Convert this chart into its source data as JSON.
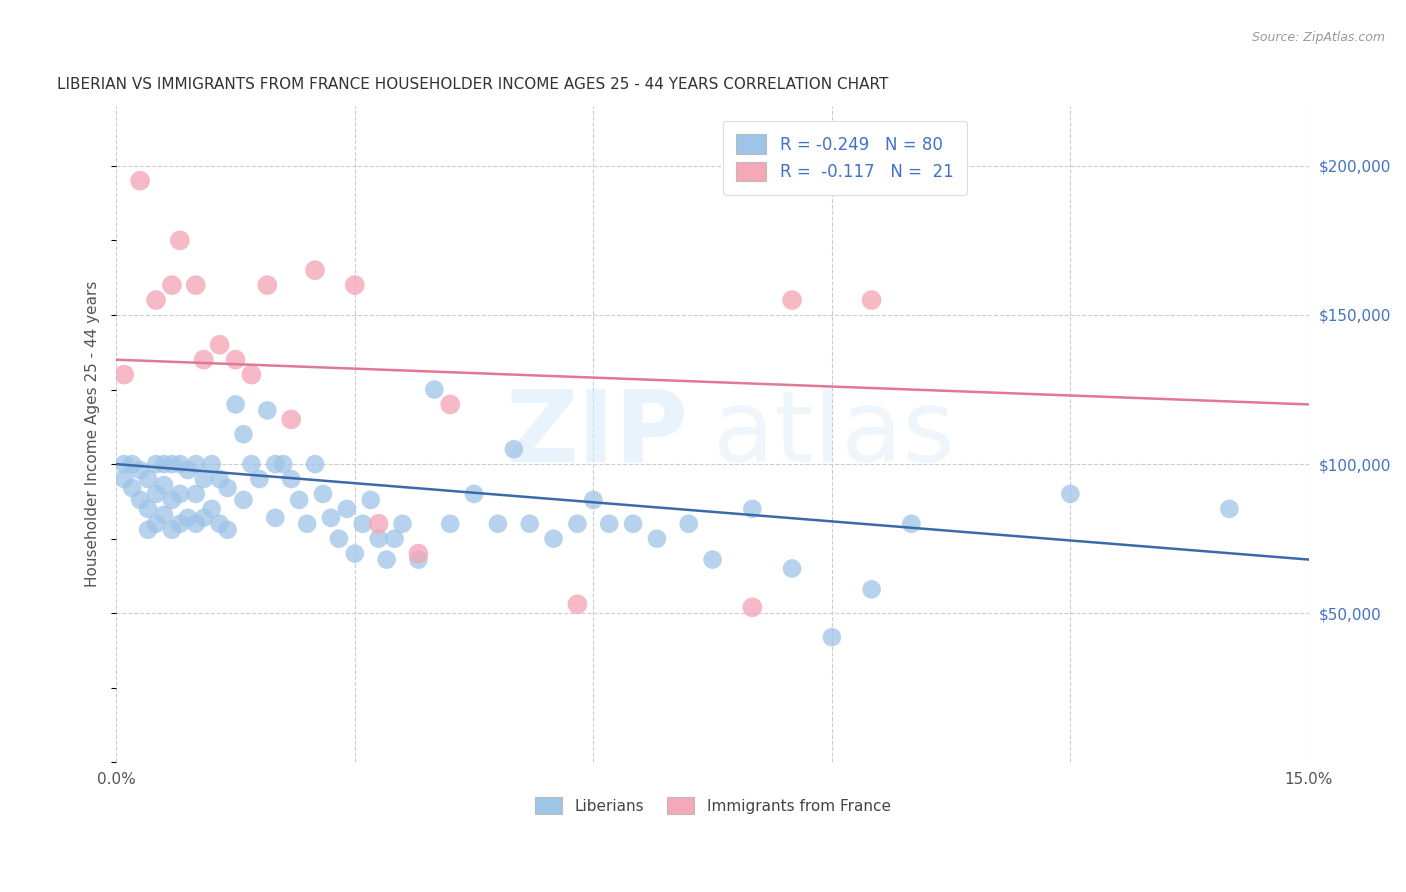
{
  "title": "LIBERIAN VS IMMIGRANTS FROM FRANCE HOUSEHOLDER INCOME AGES 25 - 44 YEARS CORRELATION CHART",
  "source": "Source: ZipAtlas.com",
  "ylabel": "Householder Income Ages 25 - 44 years",
  "xlim": [
    0.0,
    0.15
  ],
  "ylim": [
    0,
    220000
  ],
  "xticks": [
    0.0,
    0.03,
    0.06,
    0.09,
    0.12,
    0.15
  ],
  "yticks_right": [
    50000,
    100000,
    150000,
    200000
  ],
  "ytick_labels_right": [
    "$50,000",
    "$100,000",
    "$150,000",
    "$200,000"
  ],
  "legend_label_blue": "R = -0.249   N = 80",
  "legend_label_pink": "R =  -0.117   N =  21",
  "blue_scatter_x": [
    0.001,
    0.001,
    0.002,
    0.002,
    0.003,
    0.003,
    0.004,
    0.004,
    0.004,
    0.005,
    0.005,
    0.005,
    0.006,
    0.006,
    0.006,
    0.007,
    0.007,
    0.007,
    0.008,
    0.008,
    0.008,
    0.009,
    0.009,
    0.01,
    0.01,
    0.01,
    0.011,
    0.011,
    0.012,
    0.012,
    0.013,
    0.013,
    0.014,
    0.014,
    0.015,
    0.016,
    0.016,
    0.017,
    0.018,
    0.019,
    0.02,
    0.02,
    0.021,
    0.022,
    0.023,
    0.024,
    0.025,
    0.026,
    0.027,
    0.028,
    0.029,
    0.03,
    0.031,
    0.032,
    0.033,
    0.034,
    0.035,
    0.036,
    0.038,
    0.04,
    0.042,
    0.045,
    0.048,
    0.05,
    0.052,
    0.055,
    0.058,
    0.06,
    0.062,
    0.065,
    0.068,
    0.072,
    0.075,
    0.08,
    0.085,
    0.09,
    0.095,
    0.1,
    0.12,
    0.14
  ],
  "blue_scatter_y": [
    100000,
    95000,
    100000,
    92000,
    98000,
    88000,
    95000,
    85000,
    78000,
    100000,
    90000,
    80000,
    100000,
    93000,
    83000,
    100000,
    88000,
    78000,
    100000,
    90000,
    80000,
    98000,
    82000,
    100000,
    90000,
    80000,
    95000,
    82000,
    100000,
    85000,
    95000,
    80000,
    92000,
    78000,
    120000,
    110000,
    88000,
    100000,
    95000,
    118000,
    100000,
    82000,
    100000,
    95000,
    88000,
    80000,
    100000,
    90000,
    82000,
    75000,
    85000,
    70000,
    80000,
    88000,
    75000,
    68000,
    75000,
    80000,
    68000,
    125000,
    80000,
    90000,
    80000,
    105000,
    80000,
    75000,
    80000,
    88000,
    80000,
    80000,
    75000,
    80000,
    68000,
    85000,
    65000,
    42000,
    58000,
    80000,
    90000,
    85000
  ],
  "pink_scatter_x": [
    0.001,
    0.003,
    0.005,
    0.007,
    0.008,
    0.01,
    0.011,
    0.013,
    0.015,
    0.017,
    0.019,
    0.022,
    0.025,
    0.03,
    0.033,
    0.038,
    0.042,
    0.058,
    0.08,
    0.085,
    0.095
  ],
  "pink_scatter_y": [
    130000,
    195000,
    155000,
    160000,
    175000,
    160000,
    135000,
    140000,
    135000,
    130000,
    160000,
    115000,
    165000,
    160000,
    80000,
    70000,
    120000,
    53000,
    52000,
    155000,
    155000
  ],
  "blue_line_x": [
    0.0,
    0.15
  ],
  "blue_line_y": [
    100000,
    68000
  ],
  "pink_line_x": [
    0.0,
    0.15
  ],
  "pink_line_y": [
    135000,
    120000
  ],
  "dot_color_blue": "#9ec4e8",
  "dot_color_pink": "#f4a8b8",
  "line_color_blue": "#3a6aaa",
  "line_color_pink": "#e07898",
  "legend_text_color": "#4472c4",
  "background_color": "#ffffff",
  "watermark_zip": "ZIP",
  "watermark_atlas": "atlas",
  "bottom_legend": [
    "Liberians",
    "Immigrants from France"
  ],
  "title_fontsize": 11,
  "source_fontsize": 9
}
